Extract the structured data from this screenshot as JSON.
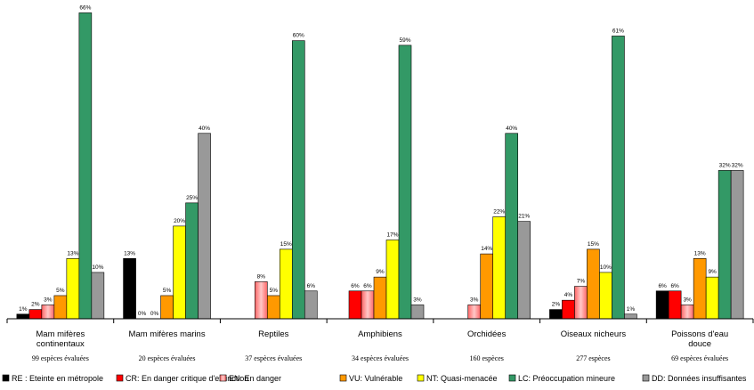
{
  "chart_data": {
    "type": "bar",
    "title": "",
    "xlabel": "",
    "ylabel": "",
    "ylim": [
      0,
      68
    ],
    "grid": false,
    "legend_position": "bottom",
    "categories": [
      {
        "name": "Mam mifères continentaux",
        "lines": [
          "Mam mifères",
          "continentaux"
        ],
        "subtitle": "99 espèces évaluées"
      },
      {
        "name": "Mam mifères marins",
        "lines": [
          "Mam mifères marins"
        ],
        "subtitle": "20 espèces évaluées"
      },
      {
        "name": "Reptiles",
        "lines": [
          "Reptiles"
        ],
        "subtitle": "37 espèces évaluées"
      },
      {
        "name": "Amphibiens",
        "lines": [
          "Amphibiens"
        ],
        "subtitle": "34 espèces évaluées"
      },
      {
        "name": "Orchidées",
        "lines": [
          "Orchidées"
        ],
        "subtitle": "160 espèces"
      },
      {
        "name": "Oiseaux nicheurs",
        "lines": [
          "Oiseaux nicheurs"
        ],
        "subtitle": "277 espèces"
      },
      {
        "name": "Poissons d'eau douce",
        "lines": [
          "Poissons d'eau",
          "douce"
        ],
        "subtitle": "69 espèces évaluées"
      }
    ],
    "series": [
      {
        "name": "RE : Eteinte en métropole",
        "color": "#000000",
        "gradient": false,
        "values": [
          1,
          13,
          null,
          null,
          null,
          2,
          6
        ],
        "labels": [
          "1%",
          "13%",
          "",
          "",
          "",
          "2%",
          "6%"
        ]
      },
      {
        "name": "CR: En danger critique d'extinction",
        "color": "#ff0000",
        "gradient": false,
        "values": [
          2,
          0,
          null,
          6,
          null,
          4,
          6
        ],
        "labels": [
          "2%",
          "",
          "",
          "6%",
          "",
          "4%",
          "6%"
        ]
      },
      {
        "name": "EN: En danger",
        "color": "#ff6666",
        "gradient": true,
        "values": [
          3,
          0,
          8,
          6,
          3,
          7,
          3
        ],
        "labels": [
          "3%",
          "0%",
          "8%",
          "6%",
          "3%",
          "7%",
          "3%"
        ]
      },
      {
        "name": "VU: Vulnérable",
        "color": "#ff9900",
        "gradient": false,
        "values": [
          5,
          5,
          5,
          9,
          14,
          15,
          13
        ],
        "labels": [
          "5%",
          "5%",
          "5%",
          "9%",
          "14%",
          "15%",
          "13%"
        ]
      },
      {
        "name": "NT: Quasi-menacée",
        "color": "#ffff00",
        "gradient": false,
        "values": [
          13,
          20,
          15,
          17,
          22,
          10,
          9
        ],
        "labels": [
          "13%",
          "20%",
          "15%",
          "17%",
          "22%",
          "10%",
          "9%"
        ]
      },
      {
        "name": "LC: Préoccupation mineure",
        "color": "#339966",
        "gradient": false,
        "values": [
          66,
          25,
          60,
          59,
          40,
          61,
          32
        ],
        "labels": [
          "66%",
          "25%",
          "60%",
          "59%",
          "40%",
          "61%",
          "32%"
        ]
      },
      {
        "name": "DD: Données insuffisantes",
        "color": "#999999",
        "gradient": false,
        "values": [
          10,
          40,
          6,
          3,
          21,
          1,
          32
        ],
        "labels": [
          "10%",
          "40%",
          "6%",
          "3%",
          "21%",
          "1%",
          "32%"
        ]
      }
    ],
    "extra_labels": [
      {
        "category": 1,
        "text": "0%",
        "position": "before-EN"
      }
    ]
  }
}
